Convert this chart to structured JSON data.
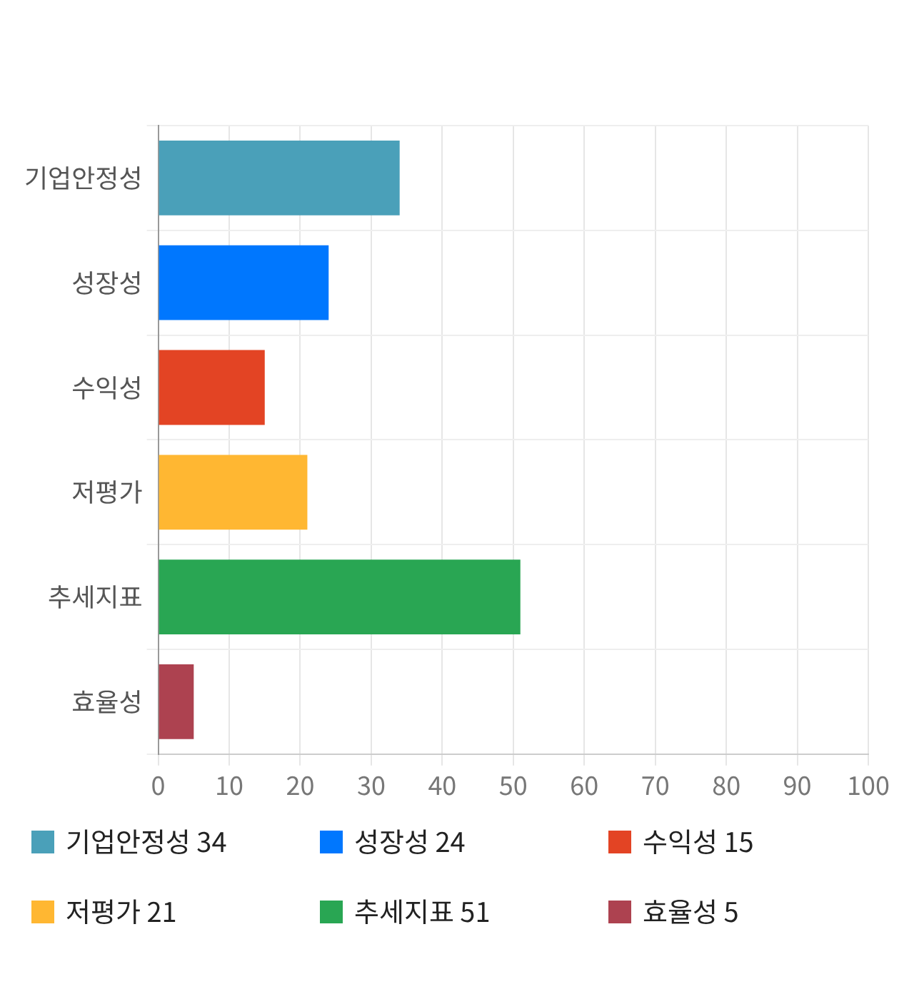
{
  "chart_data": {
    "type": "bar",
    "orientation": "horizontal",
    "stacked": true,
    "categories": [
      "기업안정성",
      "성장성",
      "수익성",
      "저평가",
      "추세지표",
      "효율성"
    ],
    "series": [
      {
        "name": "기업안정성 34",
        "color": "#4aa0b9",
        "values": [
          34,
          null,
          null,
          null,
          null,
          null
        ]
      },
      {
        "name": "성장성 24",
        "color": "#0077fe",
        "values": [
          null,
          24,
          null,
          null,
          null,
          null
        ]
      },
      {
        "name": "수익성 15",
        "color": "#e34424",
        "values": [
          null,
          null,
          15,
          null,
          null,
          null
        ]
      },
      {
        "name": "저평가 21",
        "color": "#ffb732",
        "values": [
          null,
          null,
          null,
          21,
          null,
          null
        ]
      },
      {
        "name": "추세지표 51",
        "color": "#29a653",
        "values": [
          null,
          null,
          null,
          null,
          51,
          null
        ]
      },
      {
        "name": "효율성 5",
        "color": "#ad4250",
        "values": [
          null,
          null,
          null,
          null,
          null,
          5
        ]
      }
    ],
    "xlim": [
      0,
      100
    ],
    "xticks": [
      0,
      10,
      20,
      30,
      40,
      50,
      60,
      70,
      80,
      90,
      100
    ],
    "grid": true,
    "legend": "bottom"
  }
}
